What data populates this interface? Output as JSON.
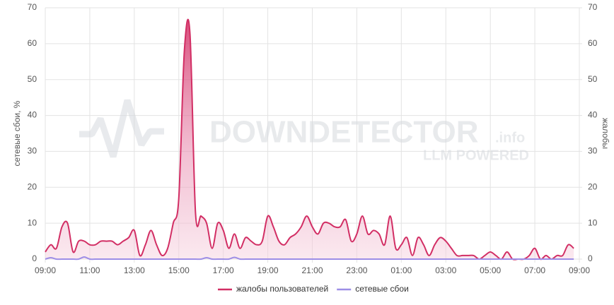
{
  "chart_data": {
    "type": "area",
    "watermark": {
      "text": "DOWNDETECTOR",
      "suffix": ".info",
      "tagline": "LLM POWERED"
    },
    "ylabel": "сетевые сбои, %",
    "y2label": "жалобы",
    "ylim": [
      0,
      70
    ],
    "yticks": [
      0,
      10,
      20,
      30,
      40,
      50,
      60,
      70
    ],
    "y2lim": [
      0,
      70
    ],
    "y2ticks": [
      0,
      10,
      20,
      30,
      40,
      50,
      60,
      70
    ],
    "xlim": [
      0,
      24
    ],
    "xticks": [
      {
        "value": 0,
        "label": "09:00"
      },
      {
        "value": 2,
        "label": "11:00"
      },
      {
        "value": 4,
        "label": "13:00"
      },
      {
        "value": 6,
        "label": "15:00"
      },
      {
        "value": 8,
        "label": "17:00"
      },
      {
        "value": 10,
        "label": "19:00"
      },
      {
        "value": 12,
        "label": "21:00"
      },
      {
        "value": 14,
        "label": "23:00"
      },
      {
        "value": 16,
        "label": "01:00"
      },
      {
        "value": 18,
        "label": "03:00"
      },
      {
        "value": 20,
        "label": "05:00"
      },
      {
        "value": 22,
        "label": "07:00"
      },
      {
        "value": 24,
        "label": "09:00"
      }
    ],
    "grid": true,
    "legend": "bottom",
    "x": [
      0,
      0.25,
      0.5,
      0.75,
      1,
      1.25,
      1.5,
      1.75,
      2,
      2.25,
      2.5,
      2.75,
      3,
      3.25,
      3.5,
      3.75,
      4,
      4.25,
      4.5,
      4.75,
      5,
      5.25,
      5.5,
      5.75,
      6,
      6.25,
      6.5,
      6.75,
      7,
      7.25,
      7.5,
      7.75,
      8,
      8.25,
      8.5,
      8.75,
      9,
      9.25,
      9.5,
      9.75,
      10,
      10.25,
      10.5,
      10.75,
      11,
      11.25,
      11.5,
      11.75,
      12,
      12.25,
      12.5,
      12.75,
      13,
      13.25,
      13.5,
      13.75,
      14,
      14.25,
      14.5,
      14.75,
      15,
      15.25,
      15.5,
      15.75,
      16,
      16.25,
      16.5,
      16.75,
      17,
      17.25,
      17.5,
      17.75,
      18,
      18.25,
      18.5,
      18.75,
      19,
      19.25,
      19.5,
      19.75,
      20,
      20.25,
      20.5,
      20.75,
      21,
      21.25,
      21.5,
      21.75,
      22,
      22.25,
      22.5,
      22.75,
      23,
      23.25,
      23.5,
      23.75
    ],
    "series": [
      {
        "name": "жалобы пользователей",
        "color": "#d22e64",
        "axis": "y2",
        "values": [
          2,
          4,
          3,
          9,
          10,
          2,
          5,
          5,
          4,
          4,
          5,
          5,
          5,
          4,
          5,
          6,
          8,
          1,
          4,
          8,
          4,
          1,
          3,
          10,
          17,
          58,
          63,
          13,
          12,
          10,
          3,
          10,
          8,
          3,
          7,
          3,
          6,
          5,
          4,
          5,
          12,
          9,
          5,
          4,
          6,
          7,
          9,
          12,
          9,
          7,
          10,
          10,
          9,
          9,
          11,
          5,
          7,
          12,
          7,
          8,
          7,
          4,
          12,
          3,
          4,
          6,
          1,
          6,
          4,
          1,
          4,
          6,
          5,
          3,
          1,
          1,
          1,
          1,
          0,
          1,
          2,
          1,
          0,
          2,
          0,
          0,
          0,
          1,
          3,
          0,
          1,
          0,
          1,
          1,
          4,
          3
        ]
      },
      {
        "name": "сетевые сбои",
        "color": "#9d8ee6",
        "values": [
          0,
          0.4,
          0,
          0,
          0,
          0,
          0,
          0.6,
          0,
          0,
          0,
          0,
          0,
          0,
          0,
          0,
          0,
          0,
          0,
          0,
          0,
          0,
          0,
          0,
          0,
          0,
          0,
          0,
          0,
          0.4,
          0,
          0,
          0,
          0,
          0.5,
          0,
          0,
          0,
          0,
          0,
          0,
          0,
          0,
          0,
          0,
          0,
          0,
          0,
          0,
          0,
          0,
          0,
          0,
          0,
          0,
          0,
          0,
          0,
          0,
          0,
          0,
          0,
          0,
          0,
          0,
          0,
          0,
          0,
          0,
          0,
          0,
          0,
          0,
          0,
          0,
          0,
          0,
          0,
          0,
          0,
          0,
          0,
          0,
          0,
          0,
          0,
          0,
          0,
          0,
          0,
          0,
          0,
          0,
          0,
          0,
          0
        ]
      }
    ]
  }
}
